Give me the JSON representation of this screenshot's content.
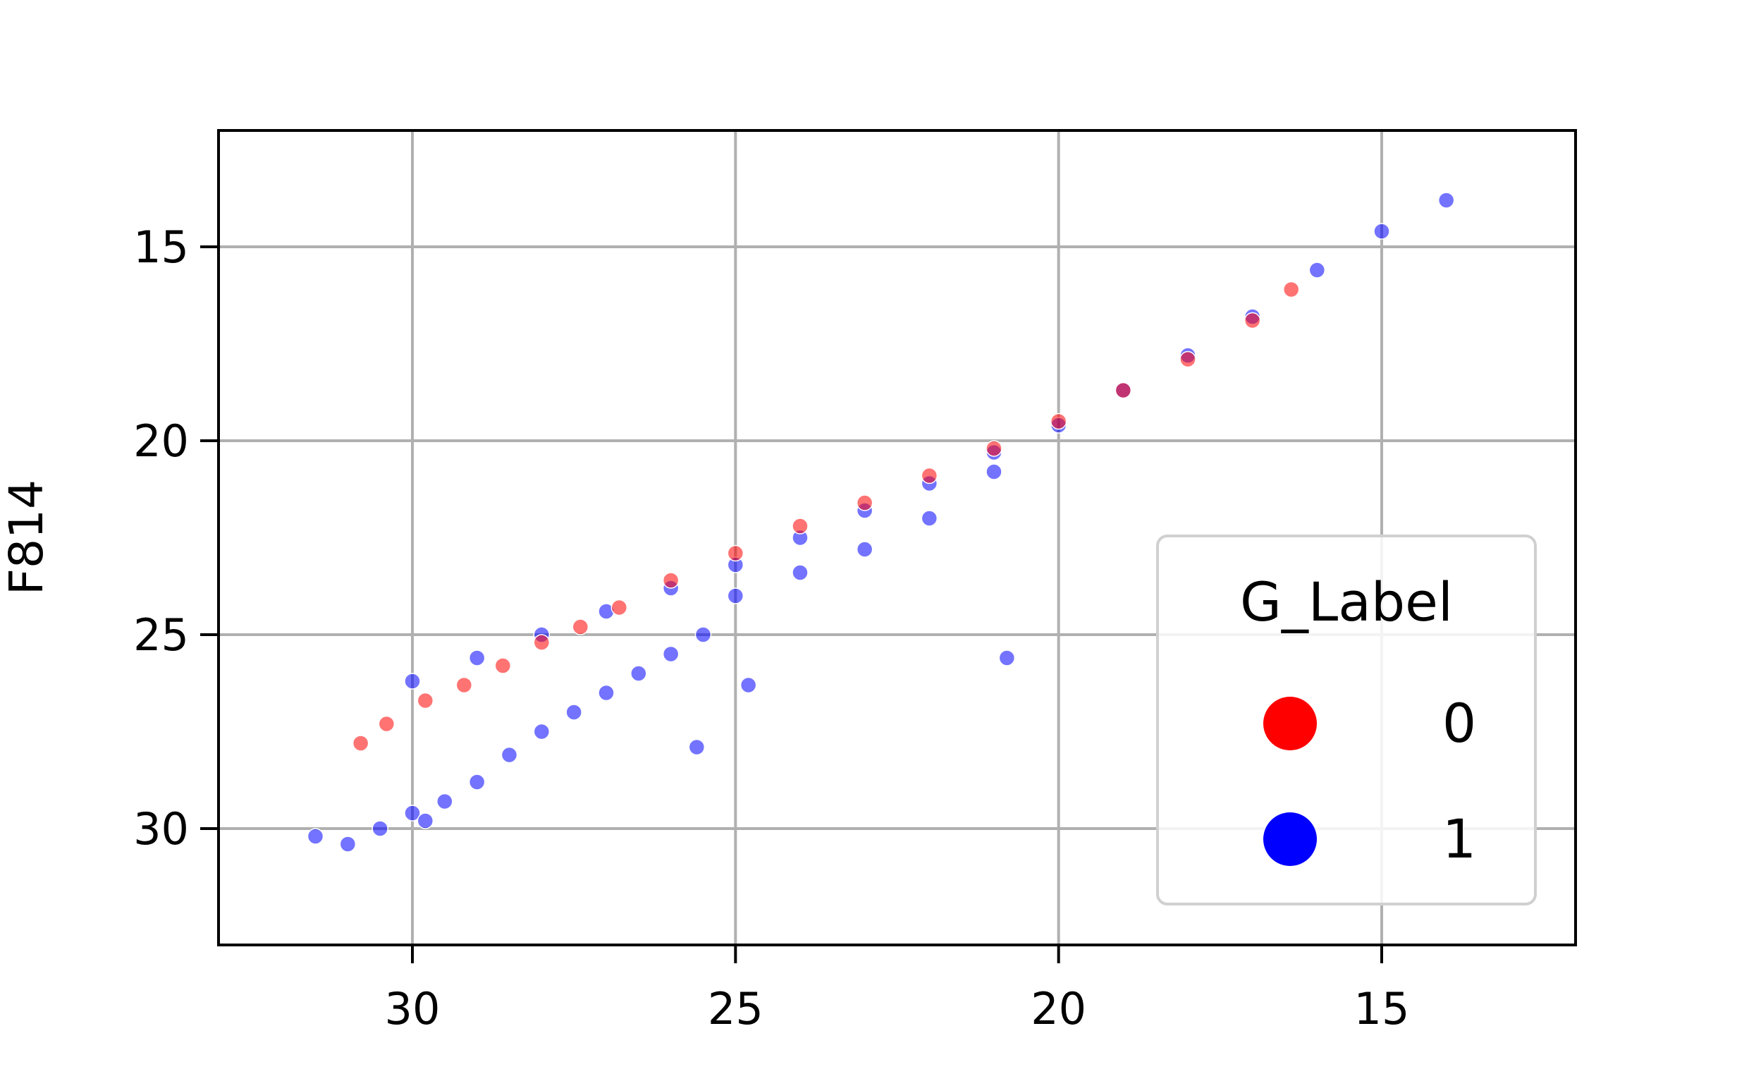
{
  "chart_data": {
    "type": "scatter",
    "title": "",
    "xlabel": "",
    "ylabel": "F814",
    "xlim": [
      33,
      12
    ],
    "ylim": [
      33,
      12
    ],
    "x_inverted": true,
    "y_inverted": true,
    "xticks": [
      30,
      25,
      20,
      15
    ],
    "yticks": [
      15,
      20,
      25,
      30
    ],
    "xtick_labels": [
      "30",
      "25",
      "20",
      "15"
    ],
    "ytick_labels": [
      "15",
      "20",
      "25",
      "30"
    ],
    "grid": true,
    "legend": {
      "title": "G_Label",
      "placement": "lower-right"
    },
    "series": [
      {
        "name": "0",
        "color": "#ff0000",
        "points": [
          [
            30.8,
            27.8
          ],
          [
            30.4,
            27.3
          ],
          [
            29.8,
            26.7
          ],
          [
            29.2,
            26.3
          ],
          [
            28.6,
            25.8
          ],
          [
            28.0,
            25.2
          ],
          [
            27.4,
            24.8
          ],
          [
            26.8,
            24.3
          ],
          [
            26.0,
            23.6
          ],
          [
            25.0,
            22.9
          ],
          [
            24.0,
            22.2
          ],
          [
            23.0,
            21.6
          ],
          [
            22.0,
            20.9
          ],
          [
            21.0,
            20.2
          ],
          [
            20.0,
            19.5
          ],
          [
            19.0,
            18.7
          ],
          [
            18.0,
            17.9
          ],
          [
            17.0,
            16.9
          ],
          [
            16.4,
            16.1
          ]
        ]
      },
      {
        "name": "1",
        "color": "#0000ff",
        "points": [
          [
            31.5,
            30.2
          ],
          [
            31.0,
            30.4
          ],
          [
            30.5,
            30.0
          ],
          [
            30.0,
            29.6
          ],
          [
            29.5,
            29.3
          ],
          [
            29.0,
            28.8
          ],
          [
            28.5,
            28.1
          ],
          [
            28.0,
            27.5
          ],
          [
            27.5,
            27.0
          ],
          [
            27.0,
            26.5
          ],
          [
            26.5,
            26.0
          ],
          [
            26.0,
            25.5
          ],
          [
            25.5,
            25.0
          ],
          [
            30.0,
            26.2
          ],
          [
            29.0,
            25.6
          ],
          [
            28.0,
            25.0
          ],
          [
            27.0,
            24.4
          ],
          [
            26.0,
            23.8
          ],
          [
            25.0,
            23.2
          ],
          [
            24.0,
            22.5
          ],
          [
            23.0,
            21.8
          ],
          [
            22.0,
            21.1
          ],
          [
            21.0,
            20.3
          ],
          [
            20.0,
            19.6
          ],
          [
            19.0,
            18.7
          ],
          [
            18.0,
            17.8
          ],
          [
            17.0,
            16.8
          ],
          [
            16.0,
            15.6
          ],
          [
            15.0,
            14.6
          ],
          [
            14.0,
            13.8
          ],
          [
            25.0,
            24.0
          ],
          [
            24.0,
            23.4
          ],
          [
            23.0,
            22.8
          ],
          [
            22.0,
            22.0
          ],
          [
            21.0,
            20.8
          ],
          [
            20.8,
            25.6
          ],
          [
            29.8,
            29.8
          ],
          [
            25.6,
            27.9
          ],
          [
            24.8,
            26.3
          ]
        ]
      }
    ]
  }
}
